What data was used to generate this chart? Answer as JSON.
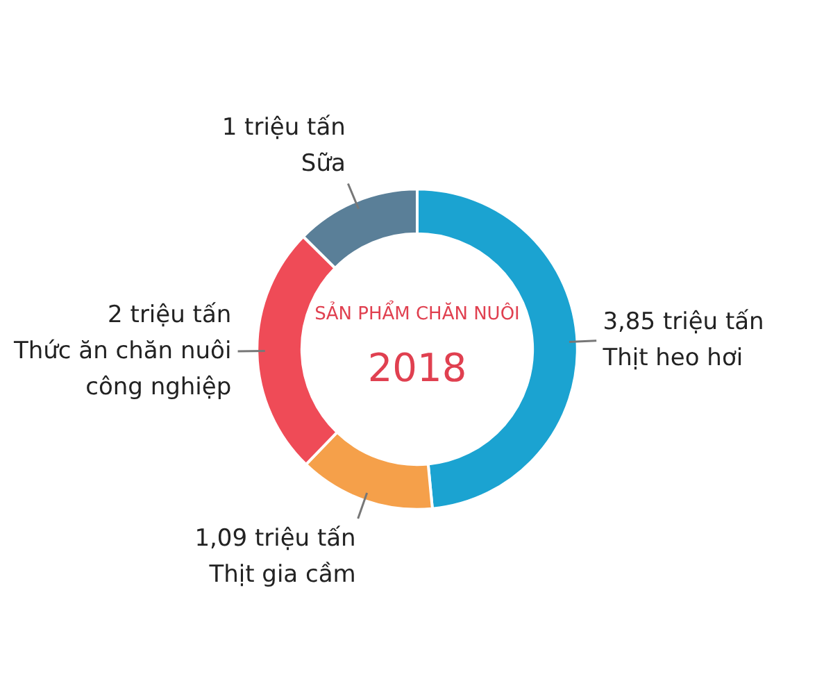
{
  "chart_data": {
    "type": "donut",
    "title": "SẢN PHẨM CHĂN NUÔI",
    "subtitle": "2018",
    "categories": [
      "Thịt heo hơi",
      "Thịt gia cầm",
      "Thức ăn chăn nuôi công nghiệp",
      "Sữa"
    ],
    "values": [
      3.85,
      1.09,
      2,
      1
    ],
    "value_labels": [
      "3,85 triệu tấn",
      "1,09 triệu tấn",
      "2 triệu tấn",
      "1 triệu tấn"
    ],
    "colors": [
      "#1ba3d1",
      "#f5a04a",
      "#ef4b57",
      "#5a7f98"
    ]
  }
}
